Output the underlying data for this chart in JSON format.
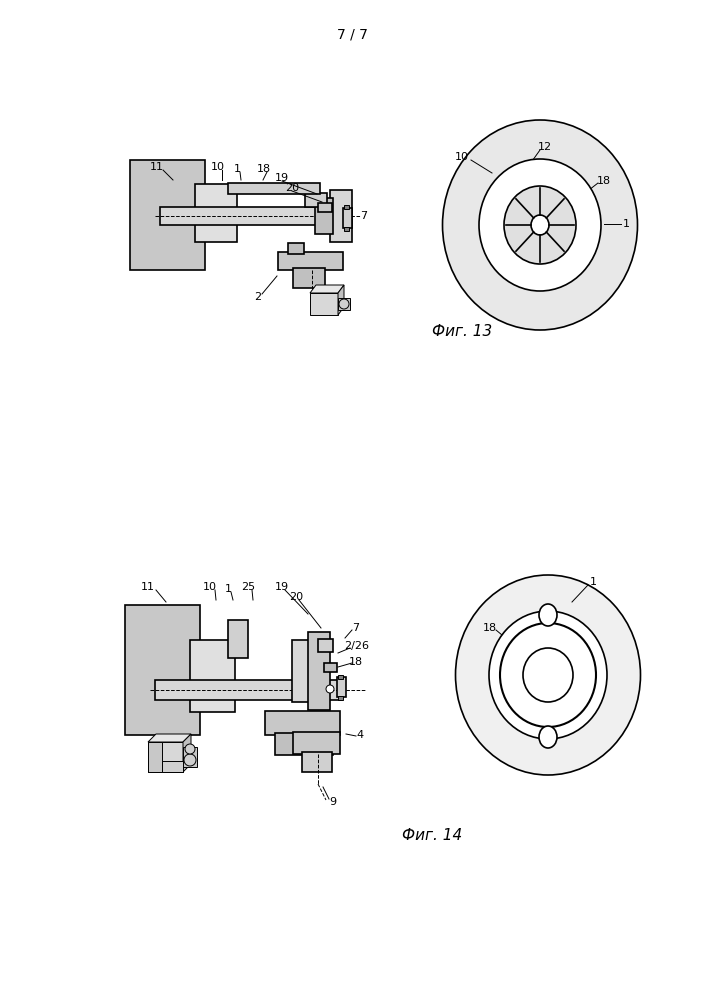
{
  "page_label": "7 / 7",
  "fig13_label": "Фиг. 13",
  "fig14_label": "Фиг. 14",
  "bg_color": "#ffffff",
  "line_color": "#000000"
}
